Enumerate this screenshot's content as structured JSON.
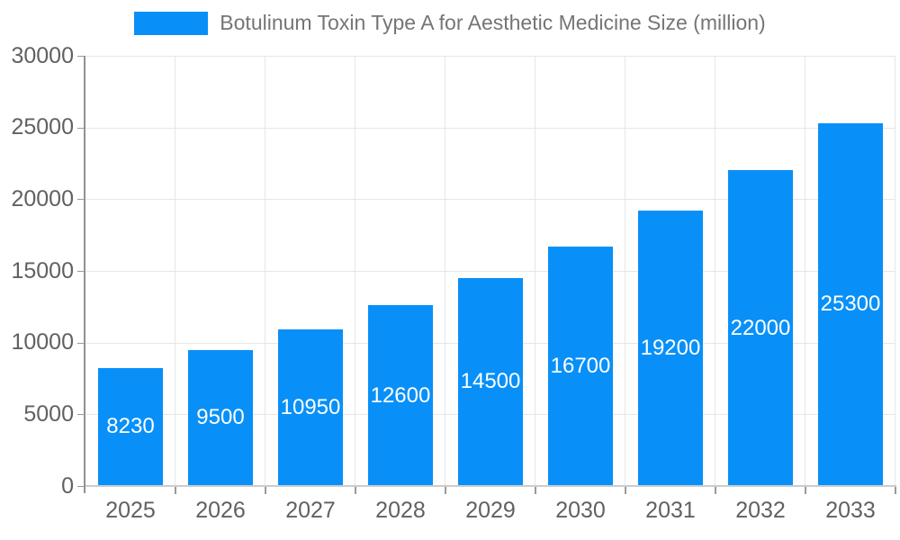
{
  "chart_data": {
    "type": "bar",
    "title": "Botulinum Toxin Type A for Aesthetic Medicine Size (million)",
    "categories": [
      "2025",
      "2026",
      "2027",
      "2028",
      "2029",
      "2030",
      "2031",
      "2032",
      "2033"
    ],
    "values": [
      8230,
      9500,
      10950,
      12600,
      14500,
      16700,
      19200,
      22000,
      25300
    ],
    "xlabel": "",
    "ylabel": "",
    "ylim": [
      0,
      30000
    ],
    "yticks": [
      0,
      5000,
      10000,
      15000,
      20000,
      25000,
      30000
    ],
    "grid": true,
    "legend_position": "top",
    "bar_color": "#0890F8",
    "value_label_color": "#FFFFFF"
  },
  "legend": {
    "label": "Botulinum Toxin Type A for Aesthetic Medicine Size (million)",
    "swatch_color": "#0890F8"
  },
  "colors": {
    "background": "#FFFFFF",
    "grid": "#E6E6E6",
    "axis_y": "#909090",
    "axis_x": "#CCCCCC",
    "tick": "#999999",
    "tick_label": "#616161",
    "legend_text": "#757575"
  }
}
